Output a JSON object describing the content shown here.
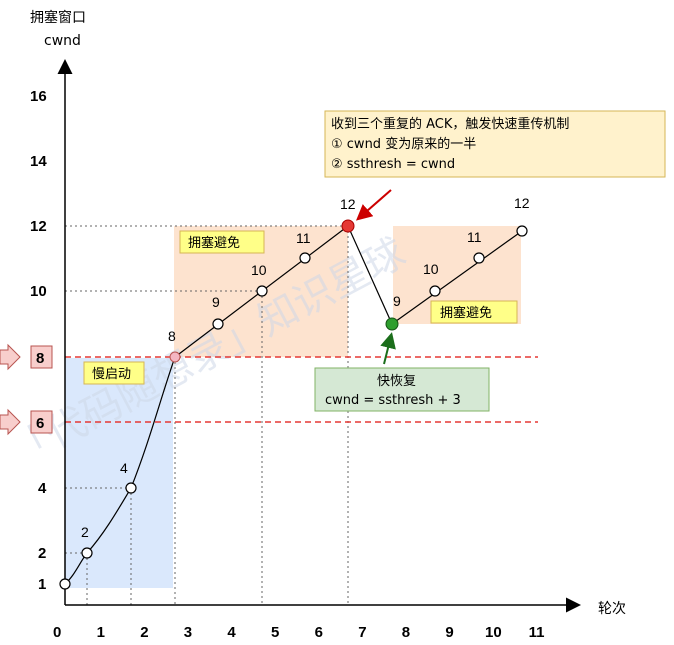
{
  "y_axis": {
    "title": "拥塞窗口",
    "unit": "cwnd",
    "ticks": [
      "16",
      "14",
      "12",
      "10",
      "8",
      "6",
      "4",
      "2",
      "1"
    ]
  },
  "x_axis": {
    "title": "轮次",
    "ticks": [
      "0",
      "1",
      "2",
      "3",
      "4",
      "5",
      "6",
      "7",
      "8",
      "9",
      "10",
      "11"
    ]
  },
  "regions": {
    "slow_start": "慢启动",
    "congestion_avoidance_1": "拥塞避免",
    "congestion_avoidance_2": "拥塞避免"
  },
  "threshold_markers": [
    "8",
    "6"
  ],
  "callout_top": {
    "line1": "收到三个重复的 ACK，触发快速重传机制",
    "line2": "① cwnd 变为原来的一半",
    "line3": "② ssthresh = cwnd"
  },
  "callout_bottom": {
    "line1": "快恢复",
    "line2": "cwnd = ssthresh + 3"
  },
  "point_labels": [
    "2",
    "4",
    "8",
    "9",
    "10",
    "11",
    "12",
    "9",
    "10",
    "11",
    "12"
  ],
  "watermark": "「代码随想录」知识星球",
  "colors": {
    "slow_start_fill": "#dae8fc",
    "avoidance_fill": "#fde3cf",
    "threshold_line": "#e53935",
    "loss_point": "#e53935",
    "recovery_point": "#2e9e2e",
    "callout_top_fill": "#fff2cc",
    "callout_top_border": "#d6b656",
    "callout_bottom_fill": "#d5e8d4",
    "callout_bottom_border": "#82b366",
    "label_fill": "#ffff88",
    "marker_fill": "#f8cecc",
    "marker_border": "#b85450"
  },
  "chart_data": {
    "type": "line",
    "xlabel": "轮次",
    "ylabel": "拥塞窗口 cwnd",
    "series": [
      {
        "points": [
          [
            0,
            1
          ],
          [
            1,
            2
          ],
          [
            2,
            4
          ],
          [
            3,
            8
          ],
          [
            4,
            9
          ],
          [
            5,
            10
          ],
          [
            6,
            11
          ],
          [
            7,
            12
          ]
        ]
      },
      {
        "points": [
          [
            7,
            12
          ],
          [
            8,
            9
          ]
        ]
      },
      {
        "points": [
          [
            8,
            9
          ],
          [
            9,
            10
          ],
          [
            10,
            11
          ],
          [
            11,
            12
          ]
        ]
      }
    ],
    "thresholds": [
      8,
      6
    ]
  }
}
